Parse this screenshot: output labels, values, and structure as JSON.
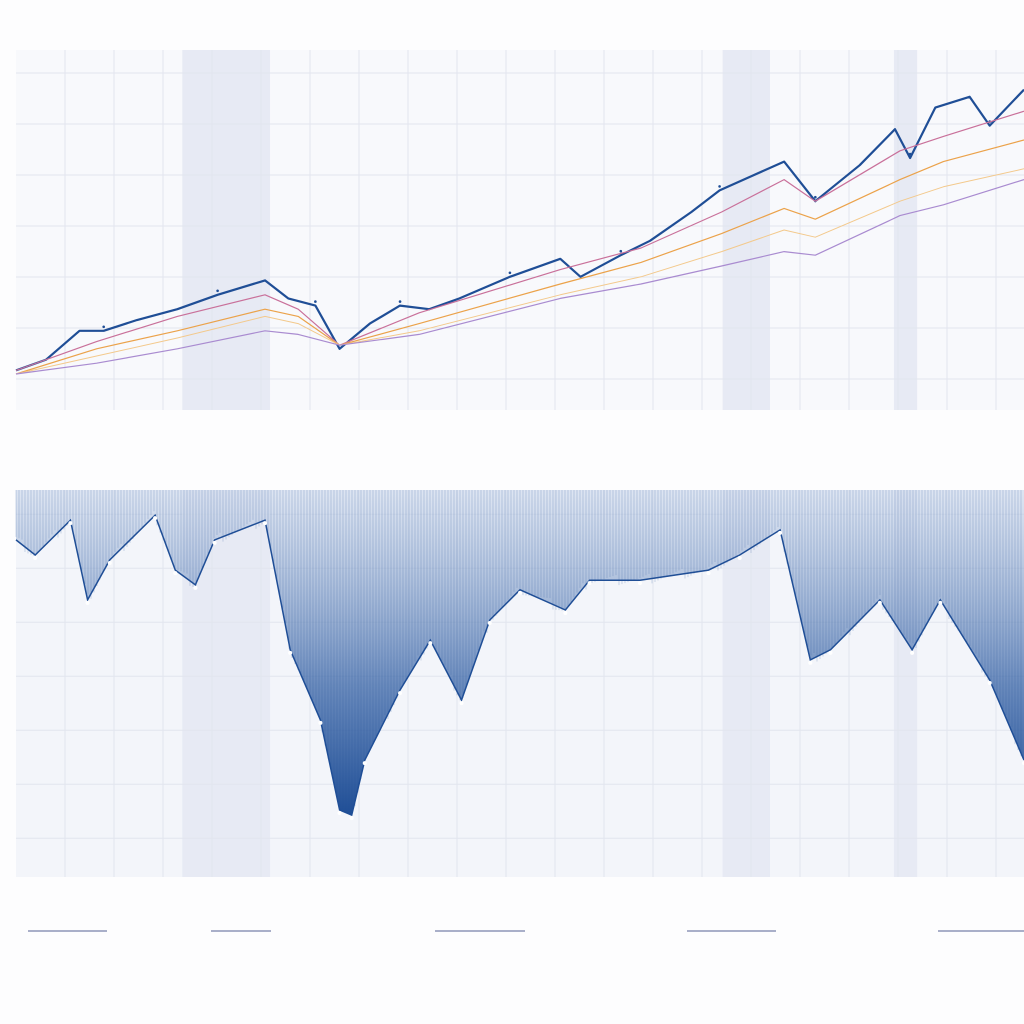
{
  "chart_data": [
    {
      "type": "line",
      "title": "",
      "xlabel": "",
      "ylabel": "",
      "xlim": [
        0,
        100
      ],
      "ylim": [
        0,
        100
      ],
      "grid": true,
      "shaded_regions": [
        [
          16.5,
          25.2
        ],
        [
          70.1,
          74.8
        ],
        [
          87.1,
          89.4
        ]
      ],
      "series": [
        {
          "color": "#1f4e96",
          "width": 2.2,
          "points": [
            [
              0,
              11
            ],
            [
              3,
              14
            ],
            [
              6.3,
              22
            ],
            [
              8.7,
              22
            ],
            [
              12,
              25
            ],
            [
              16,
              28
            ],
            [
              20,
              32
            ],
            [
              24.7,
              36
            ],
            [
              27,
              31
            ],
            [
              29.7,
              29
            ],
            [
              32.1,
              17
            ],
            [
              35.1,
              24
            ],
            [
              38.1,
              29
            ],
            [
              41,
              28
            ],
            [
              44,
              31
            ],
            [
              49,
              37
            ],
            [
              54,
              42
            ],
            [
              56,
              37
            ],
            [
              60,
              43
            ],
            [
              62.9,
              47
            ],
            [
              67,
              55
            ],
            [
              69.8,
              61
            ],
            [
              73,
              65
            ],
            [
              76.2,
              69
            ],
            [
              79.3,
              58
            ],
            [
              83.7,
              68
            ],
            [
              87.2,
              78
            ],
            [
              88.7,
              70
            ],
            [
              91.2,
              84
            ],
            [
              94.6,
              87
            ],
            [
              96.6,
              79
            ],
            [
              100,
              89
            ]
          ]
        },
        {
          "color": "#c9709a",
          "width": 1.2,
          "points": [
            [
              0,
              11
            ],
            [
              8,
              19
            ],
            [
              16,
              26
            ],
            [
              24.7,
              32
            ],
            [
              28,
              28
            ],
            [
              32.1,
              18
            ],
            [
              40,
              27
            ],
            [
              54,
              39
            ],
            [
              62,
              45
            ],
            [
              70,
              55
            ],
            [
              76.2,
              64
            ],
            [
              79.3,
              58
            ],
            [
              87.7,
              72
            ],
            [
              92,
              76
            ],
            [
              100,
              83
            ]
          ]
        },
        {
          "color": "#eba24a",
          "width": 1.2,
          "points": [
            [
              0,
              10
            ],
            [
              8,
              17
            ],
            [
              16,
              22
            ],
            [
              24.7,
              28
            ],
            [
              28,
              26
            ],
            [
              32.1,
              18
            ],
            [
              40,
              24
            ],
            [
              54,
              35
            ],
            [
              62,
              41
            ],
            [
              70,
              49
            ],
            [
              76.2,
              56
            ],
            [
              79.3,
              53
            ],
            [
              87.7,
              64
            ],
            [
              92,
              69
            ],
            [
              100,
              75
            ]
          ]
        },
        {
          "color": "#f3c98c",
          "width": 1,
          "points": [
            [
              0,
              10
            ],
            [
              8,
              15
            ],
            [
              16,
              20
            ],
            [
              24.7,
              26
            ],
            [
              28,
              24
            ],
            [
              32.1,
              18
            ],
            [
              40,
              22
            ],
            [
              54,
              32
            ],
            [
              62,
              37
            ],
            [
              70,
              44
            ],
            [
              76.2,
              50
            ],
            [
              79.3,
              48
            ],
            [
              87.7,
              58
            ],
            [
              92,
              62
            ],
            [
              100,
              67
            ]
          ]
        },
        {
          "color": "#a98bd0",
          "width": 1.2,
          "points": [
            [
              0,
              10
            ],
            [
              8,
              13
            ],
            [
              16,
              17
            ],
            [
              24.7,
              22
            ],
            [
              28,
              21
            ],
            [
              32.1,
              18
            ],
            [
              40,
              21
            ],
            [
              54,
              31
            ],
            [
              62,
              35
            ],
            [
              70,
              40
            ],
            [
              76.2,
              44
            ],
            [
              79.3,
              43
            ],
            [
              87.7,
              54
            ],
            [
              92,
              57
            ],
            [
              100,
              64
            ]
          ]
        }
      ]
    },
    {
      "type": "area",
      "title": "",
      "xlabel": "",
      "ylabel": "",
      "xlim": [
        0,
        100
      ],
      "ylim": [
        -100,
        0
      ],
      "grid": true,
      "shaded_regions": [
        [
          16.5,
          25.2
        ],
        [
          70.1,
          74.8
        ],
        [
          87.1,
          89.4
        ]
      ],
      "series": [
        {
          "color": "#1f4e96",
          "points": [
            [
              0,
              -12.9
            ],
            [
              1.9,
              -16.8
            ],
            [
              5.4,
              -7.8
            ],
            [
              7.1,
              -28.4
            ],
            [
              9.3,
              -18.1
            ],
            [
              13.8,
              -6.5
            ],
            [
              15.8,
              -20.7
            ],
            [
              17.8,
              -24.5
            ],
            [
              19.7,
              -12.9
            ],
            [
              24.7,
              -7.8
            ],
            [
              27.2,
              -41.3
            ],
            [
              30.2,
              -59.4
            ],
            [
              32.1,
              -82.7
            ],
            [
              33.3,
              -84.0
            ],
            [
              34.6,
              -69.8
            ],
            [
              38.1,
              -51.7
            ],
            [
              41.1,
              -38.8
            ],
            [
              44.2,
              -54.3
            ],
            [
              47.0,
              -33.6
            ],
            [
              50,
              -25.8
            ],
            [
              54.5,
              -31
            ],
            [
              56.9,
              -23.3
            ],
            [
              61.9,
              -23.3
            ],
            [
              68.7,
              -20.7
            ],
            [
              71.8,
              -16.8
            ],
            [
              75.8,
              -10.3
            ],
            [
              78.8,
              -43.9
            ],
            [
              80.8,
              -41.3
            ],
            [
              85.7,
              -28.4
            ],
            [
              88.9,
              -41.3
            ],
            [
              91.7,
              -28.4
            ],
            [
              96.6,
              -49.1
            ],
            [
              100,
              -69.8
            ]
          ]
        }
      ]
    }
  ],
  "legend": {
    "placement": "bottom",
    "color": "#a9afc9",
    "entries": 5
  }
}
